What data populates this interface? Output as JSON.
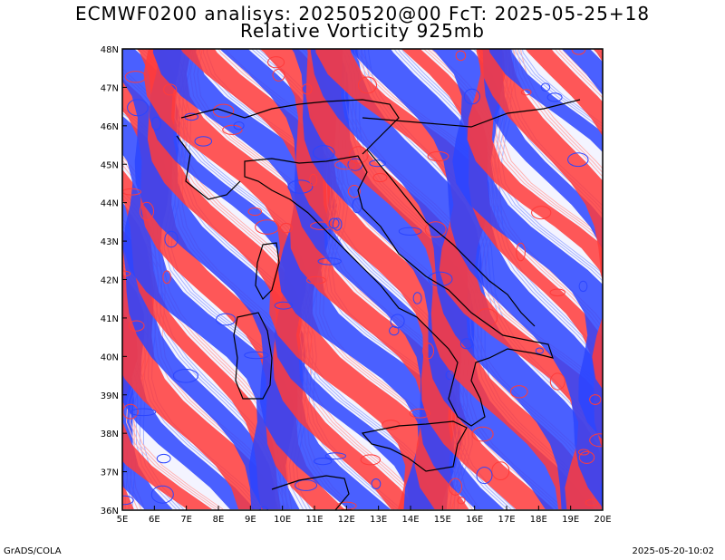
{
  "title": {
    "line1": "ECMWF0200 analisys: 20250520@00 FcT: 2025-05-25+18",
    "line2": "Relative Vorticity 925mb"
  },
  "map": {
    "lon_range": [
      5,
      20
    ],
    "lat_range": [
      36,
      48
    ],
    "lon_ticks": [
      "5E",
      "6E",
      "7E",
      "8E",
      "9E",
      "10E",
      "11E",
      "12E",
      "13E",
      "14E",
      "15E",
      "16E",
      "17E",
      "18E",
      "19E",
      "20E"
    ],
    "lat_ticks": [
      "36N",
      "37N",
      "38N",
      "39N",
      "40N",
      "41N",
      "42N",
      "43N",
      "44N",
      "45N",
      "46N",
      "47N",
      "48N"
    ],
    "colors": {
      "positive": "#ff3b3b",
      "negative": "#2b45ff",
      "positive_light": "#ffb3b3",
      "negative_light": "#a9b6ff",
      "coast": "#000000"
    }
  },
  "footer": {
    "left": "GrADS/COLA",
    "right": "2025-05-20-10:02"
  }
}
